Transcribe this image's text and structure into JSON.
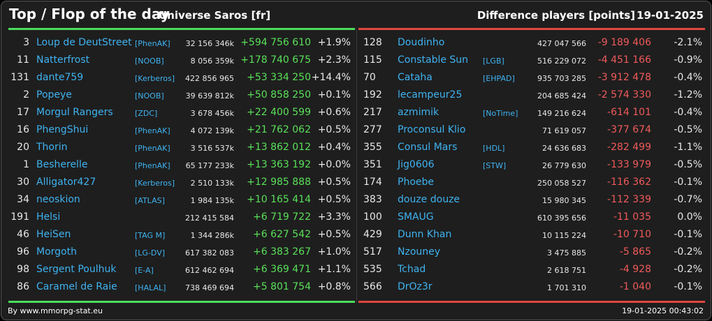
{
  "header": {
    "title": "Top / Flop of the day",
    "universe": "Universe Saros [fr]",
    "metric": "Difference players [points]",
    "date": "19-01-2025"
  },
  "top": [
    {
      "rank": "3",
      "name": "Loup de DeutStreet",
      "tag": "[PhenAK]",
      "points": "32 156 346k",
      "diff": "+594 756 610",
      "pct": "+1.9%"
    },
    {
      "rank": "11",
      "name": "Natterfrost",
      "tag": "[NOOB]",
      "points": "8 056 359k",
      "diff": "+178 740 675",
      "pct": "+2.3%"
    },
    {
      "rank": "131",
      "name": "dante759",
      "tag": "[Kerberos]",
      "points": "422 856 965",
      "diff": "+53 334 250",
      "pct": "+14.4%"
    },
    {
      "rank": "2",
      "name": "Popeye",
      "tag": "[NOOB]",
      "points": "39 639 812k",
      "diff": "+50 858 250",
      "pct": "+0.1%"
    },
    {
      "rank": "17",
      "name": "Morgul Rangers",
      "tag": "[ZDC]",
      "points": "3 678 456k",
      "diff": "+22 400 599",
      "pct": "+0.6%"
    },
    {
      "rank": "16",
      "name": "PhengShui",
      "tag": "[PhenAK]",
      "points": "4 072 139k",
      "diff": "+21 762 062",
      "pct": "+0.5%"
    },
    {
      "rank": "20",
      "name": "Thorin",
      "tag": "[PhenAK]",
      "points": "3 516 537k",
      "diff": "+13 862 012",
      "pct": "+0.4%"
    },
    {
      "rank": "1",
      "name": "Besherelle",
      "tag": "[PhenAK]",
      "points": "65 177 233k",
      "diff": "+13 363 192",
      "pct": "+0.0%"
    },
    {
      "rank": "30",
      "name": "Alligator427",
      "tag": "[Kerberos]",
      "points": "2 510 133k",
      "diff": "+12 985 888",
      "pct": "+0.5%"
    },
    {
      "rank": "34",
      "name": "neoskion",
      "tag": "[ATLAS]",
      "points": "1 984 135k",
      "diff": "+10 165 414",
      "pct": "+0.5%"
    },
    {
      "rank": "191",
      "name": "Helsi",
      "tag": "",
      "points": "212 415 584",
      "diff": "+6 719 722",
      "pct": "+3.3%"
    },
    {
      "rank": "46",
      "name": "HeiSen",
      "tag": "[TAG M]",
      "points": "1 344 286k",
      "diff": "+6 627 542",
      "pct": "+0.5%"
    },
    {
      "rank": "96",
      "name": "Morgoth",
      "tag": "[LG-DV]",
      "points": "617 382 083",
      "diff": "+6 383 267",
      "pct": "+1.0%"
    },
    {
      "rank": "98",
      "name": "Sergent Poulhuk",
      "tag": "[E-A]",
      "points": "612 462 694",
      "diff": "+6 369 471",
      "pct": "+1.1%"
    },
    {
      "rank": "86",
      "name": "Caramel de Raie",
      "tag": "[HALAL]",
      "points": "738 469 694",
      "diff": "+5 801 754",
      "pct": "+0.8%"
    }
  ],
  "flop": [
    {
      "rank": "128",
      "name": "Doudinho",
      "tag": "",
      "points": "427 047 566",
      "diff": "-9 189 406",
      "pct": "-2.1%"
    },
    {
      "rank": "115",
      "name": "Constable Sun",
      "tag": "[LGB]",
      "points": "516 229 072",
      "diff": "-4 451 166",
      "pct": "-0.9%"
    },
    {
      "rank": "70",
      "name": "Cataha",
      "tag": "[EHPAD]",
      "points": "935 703 285",
      "diff": "-3 912 478",
      "pct": "-0.4%"
    },
    {
      "rank": "192",
      "name": "lecampeur25",
      "tag": "",
      "points": "204 685 424",
      "diff": "-2 574 330",
      "pct": "-1.2%"
    },
    {
      "rank": "217",
      "name": "azmimik",
      "tag": "[NoTime]",
      "points": "149 216 624",
      "diff": "-614 101",
      "pct": "-0.4%"
    },
    {
      "rank": "277",
      "name": "Proconsul Klio",
      "tag": "",
      "points": "71 619 057",
      "diff": "-377 674",
      "pct": "-0.5%"
    },
    {
      "rank": "355",
      "name": "Consul Mars",
      "tag": "[HDL]",
      "points": "24 636 683",
      "diff": "-282 499",
      "pct": "-1.1%"
    },
    {
      "rank": "351",
      "name": "Jig0606",
      "tag": "[STW]",
      "points": "26 779 630",
      "diff": "-133 979",
      "pct": "-0.5%"
    },
    {
      "rank": "174",
      "name": "Phoebe",
      "tag": "",
      "points": "250 058 527",
      "diff": "-116 362",
      "pct": "-0.1%"
    },
    {
      "rank": "383",
      "name": "douze douze",
      "tag": "",
      "points": "15 980 345",
      "diff": "-112 339",
      "pct": "-0.7%"
    },
    {
      "rank": "100",
      "name": "SMAUG",
      "tag": "",
      "points": "610 395 656",
      "diff": "-11 035",
      "pct": "0.0%"
    },
    {
      "rank": "429",
      "name": "Dunn Khan",
      "tag": "",
      "points": "10 115 224",
      "diff": "-10 710",
      "pct": "-0.1%"
    },
    {
      "rank": "517",
      "name": "Nzouney",
      "tag": "",
      "points": "3 475 885",
      "diff": "-5 865",
      "pct": "-0.2%"
    },
    {
      "rank": "535",
      "name": "Tchad",
      "tag": "",
      "points": "2 618 751",
      "diff": "-4 928",
      "pct": "-0.2%"
    },
    {
      "rank": "566",
      "name": "DrOz3r",
      "tag": "",
      "points": "1 701 310",
      "diff": "-1 040",
      "pct": "-0.1%"
    }
  ],
  "footer": {
    "source": "By www.mmorpg-stat.eu",
    "timestamp": "19-01-2025 00:43:02"
  },
  "colors": {
    "background": "#1e1e1e",
    "link": "#3fb3f0",
    "positive": "#5ae05a",
    "negative": "#f05a5a",
    "top_bar": "#4cdc5c",
    "flop_bar": "#e0473e"
  }
}
